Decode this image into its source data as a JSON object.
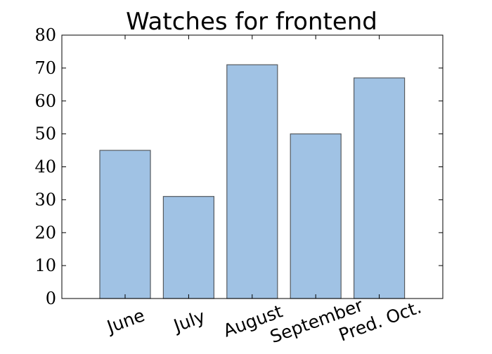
{
  "chart_data": {
    "type": "bar",
    "title": "Watches for frontend",
    "xlabel": "",
    "ylabel": "",
    "categories": [
      "June",
      "July",
      "August",
      "September",
      "Pred. Oct."
    ],
    "values": [
      45,
      31,
      71,
      50,
      67
    ],
    "ylim": [
      0,
      80
    ],
    "yticks": [
      0,
      10,
      20,
      30,
      40,
      50,
      60,
      70,
      80
    ],
    "grid": false,
    "bar_color": "#a0c2e4",
    "bar_edge_color": "#555a5f",
    "x_tick_rotation_deg": -20
  }
}
